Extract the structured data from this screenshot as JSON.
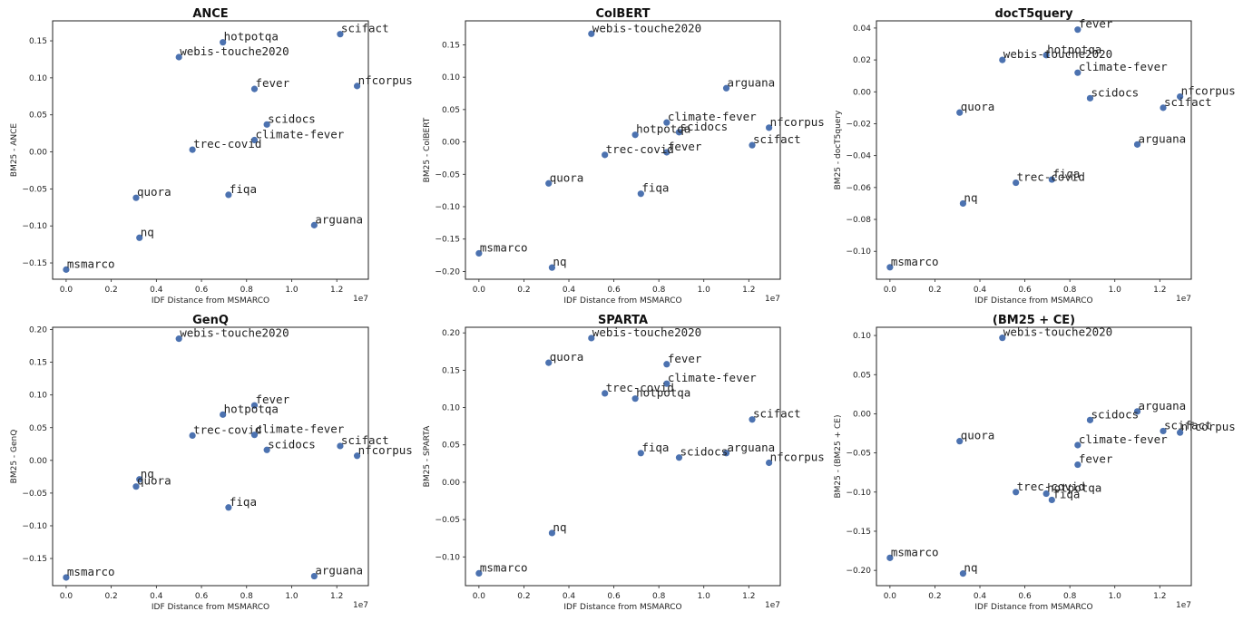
{
  "chart_data": [
    {
      "type": "scatter",
      "title": "ANCE",
      "xlabel": "IDF Distance from MSMARCO",
      "ylabel": "BM25 - ANCE",
      "x_offset_label": "1e7",
      "xlim": [
        -0.06,
        1.34
      ],
      "ylim": [
        -0.172,
        0.177
      ],
      "xticks": [
        0.0,
        0.2,
        0.4,
        0.6,
        0.8,
        1.0,
        1.2
      ],
      "xtick_labels": [
        "0.0",
        "0.2",
        "0.4",
        "0.6",
        "0.8",
        "1.0",
        "1.2"
      ],
      "yticks": [
        -0.15,
        -0.1,
        -0.05,
        0.0,
        0.05,
        0.1,
        0.15
      ],
      "ytick_labels": [
        "−0.15",
        "−0.10",
        "−0.05",
        "0.00",
        "0.05",
        "0.10",
        "0.15"
      ],
      "points": [
        {
          "label": "scifact",
          "x": 1.215,
          "y": 0.159
        },
        {
          "label": "hotpotqa",
          "x": 0.695,
          "y": 0.148
        },
        {
          "label": "webis-touche2020",
          "x": 0.5,
          "y": 0.128
        },
        {
          "label": "nfcorpus",
          "x": 1.29,
          "y": 0.089
        },
        {
          "label": "fever",
          "x": 0.835,
          "y": 0.085
        },
        {
          "label": "scidocs",
          "x": 0.89,
          "y": 0.037
        },
        {
          "label": "climate-fever",
          "x": 0.835,
          "y": 0.016
        },
        {
          "label": "trec-covid",
          "x": 0.56,
          "y": 0.003
        },
        {
          "label": "quora",
          "x": 0.31,
          "y": -0.062
        },
        {
          "label": "fiqa",
          "x": 0.72,
          "y": -0.058
        },
        {
          "label": "arguana",
          "x": 1.1,
          "y": -0.099
        },
        {
          "label": "nq",
          "x": 0.325,
          "y": -0.116
        },
        {
          "label": "msmarco",
          "x": 0.0,
          "y": -0.159
        }
      ]
    },
    {
      "type": "scatter",
      "title": "ColBERT",
      "xlabel": "IDF Distance from MSMARCO",
      "ylabel": "BM25 - ColBERT",
      "x_offset_label": "1e7",
      "xlim": [
        -0.06,
        1.34
      ],
      "ylim": [
        -0.212,
        0.187
      ],
      "xticks": [
        0.0,
        0.2,
        0.4,
        0.6,
        0.8,
        1.0,
        1.2
      ],
      "xtick_labels": [
        "0.0",
        "0.2",
        "0.4",
        "0.6",
        "0.8",
        "1.0",
        "1.2"
      ],
      "yticks": [
        -0.2,
        -0.15,
        -0.1,
        -0.05,
        0.0,
        0.05,
        0.1,
        0.15
      ],
      "ytick_labels": [
        "−0.20",
        "−0.15",
        "−0.10",
        "−0.05",
        "0.00",
        "0.05",
        "0.10",
        "0.15"
      ],
      "points": [
        {
          "label": "webis-touche2020",
          "x": 0.5,
          "y": 0.167
        },
        {
          "label": "arguana",
          "x": 1.1,
          "y": 0.083
        },
        {
          "label": "climate-fever",
          "x": 0.835,
          "y": 0.03
        },
        {
          "label": "nfcorpus",
          "x": 1.29,
          "y": 0.022
        },
        {
          "label": "scidocs",
          "x": 0.89,
          "y": 0.015
        },
        {
          "label": "hotpotqa",
          "x": 0.695,
          "y": 0.011
        },
        {
          "label": "scifact",
          "x": 1.215,
          "y": -0.005
        },
        {
          "label": "fever",
          "x": 0.835,
          "y": -0.016
        },
        {
          "label": "trec-covid",
          "x": 0.56,
          "y": -0.02
        },
        {
          "label": "quora",
          "x": 0.31,
          "y": -0.064
        },
        {
          "label": "fiqa",
          "x": 0.72,
          "y": -0.08
        },
        {
          "label": "msmarco",
          "x": 0.0,
          "y": -0.172
        },
        {
          "label": "nq",
          "x": 0.325,
          "y": -0.194
        }
      ]
    },
    {
      "type": "scatter",
      "title": "docT5query",
      "xlabel": "IDF Distance from MSMARCO",
      "ylabel": "BM25 - docT5query",
      "x_offset_label": "1e7",
      "xlim": [
        -0.06,
        1.34
      ],
      "ylim": [
        -0.1175,
        0.0445
      ],
      "xticks": [
        0.0,
        0.2,
        0.4,
        0.6,
        0.8,
        1.0,
        1.2
      ],
      "xtick_labels": [
        "0.0",
        "0.2",
        "0.4",
        "0.6",
        "0.8",
        "1.0",
        "1.2"
      ],
      "yticks": [
        -0.1,
        -0.08,
        -0.06,
        -0.04,
        -0.02,
        0.0,
        0.02,
        0.04
      ],
      "ytick_labels": [
        "−0.10",
        "−0.08",
        "−0.06",
        "−0.04",
        "−0.02",
        "0.00",
        "0.02",
        "0.04"
      ],
      "points": [
        {
          "label": "fever",
          "x": 0.835,
          "y": 0.039
        },
        {
          "label": "hotpotqa",
          "x": 0.695,
          "y": 0.023
        },
        {
          "label": "webis-touche2020",
          "x": 0.5,
          "y": 0.02
        },
        {
          "label": "climate-fever",
          "x": 0.835,
          "y": 0.012
        },
        {
          "label": "nfcorpus",
          "x": 1.29,
          "y": -0.003
        },
        {
          "label": "scidocs",
          "x": 0.89,
          "y": -0.004
        },
        {
          "label": "scifact",
          "x": 1.215,
          "y": -0.01
        },
        {
          "label": "quora",
          "x": 0.31,
          "y": -0.013
        },
        {
          "label": "arguana",
          "x": 1.1,
          "y": -0.033
        },
        {
          "label": "fiqa",
          "x": 0.72,
          "y": -0.055
        },
        {
          "label": "trec-covid",
          "x": 0.56,
          "y": -0.057
        },
        {
          "label": "nq",
          "x": 0.325,
          "y": -0.07
        },
        {
          "label": "msmarco",
          "x": 0.0,
          "y": -0.11
        }
      ]
    },
    {
      "type": "scatter",
      "title": "GenQ",
      "xlabel": "IDF Distance from MSMARCO",
      "ylabel": "BM25 - GenQ",
      "x_offset_label": "1e7",
      "xlim": [
        -0.06,
        1.34
      ],
      "ylim": [
        -0.1915,
        0.2035
      ],
      "xticks": [
        0.0,
        0.2,
        0.4,
        0.6,
        0.8,
        1.0,
        1.2
      ],
      "xtick_labels": [
        "0.0",
        "0.2",
        "0.4",
        "0.6",
        "0.8",
        "1.0",
        "1.2"
      ],
      "yticks": [
        -0.15,
        -0.1,
        -0.05,
        0.0,
        0.05,
        0.1,
        0.15,
        0.2
      ],
      "ytick_labels": [
        "−0.15",
        "−0.10",
        "−0.05",
        "0.00",
        "0.05",
        "0.10",
        "0.15",
        "0.20"
      ],
      "points": [
        {
          "label": "webis-touche2020",
          "x": 0.5,
          "y": 0.186
        },
        {
          "label": "fever",
          "x": 0.835,
          "y": 0.084
        },
        {
          "label": "hotpotqa",
          "x": 0.695,
          "y": 0.07
        },
        {
          "label": "trec-covid",
          "x": 0.56,
          "y": 0.038
        },
        {
          "label": "climate-fever",
          "x": 0.835,
          "y": 0.039
        },
        {
          "label": "scifact",
          "x": 1.215,
          "y": 0.022
        },
        {
          "label": "scidocs",
          "x": 0.89,
          "y": 0.016
        },
        {
          "label": "nfcorpus",
          "x": 1.29,
          "y": 0.007
        },
        {
          "label": "nq",
          "x": 0.325,
          "y": -0.029
        },
        {
          "label": "quora",
          "x": 0.31,
          "y": -0.04
        },
        {
          "label": "fiqa",
          "x": 0.72,
          "y": -0.072
        },
        {
          "label": "arguana",
          "x": 1.1,
          "y": -0.177
        },
        {
          "label": "msmarco",
          "x": 0.0,
          "y": -0.179
        }
      ]
    },
    {
      "type": "scatter",
      "title": "SPARTA",
      "xlabel": "IDF Distance from MSMARCO",
      "ylabel": "BM25 - SPARTA",
      "x_offset_label": "1e7",
      "xlim": [
        -0.06,
        1.34
      ],
      "ylim": [
        -0.1385,
        0.2075
      ],
      "xticks": [
        0.0,
        0.2,
        0.4,
        0.6,
        0.8,
        1.0,
        1.2
      ],
      "xtick_labels": [
        "0.0",
        "0.2",
        "0.4",
        "0.6",
        "0.8",
        "1.0",
        "1.2"
      ],
      "yticks": [
        -0.1,
        -0.05,
        0.0,
        0.05,
        0.1,
        0.15,
        0.2
      ],
      "ytick_labels": [
        "−0.10",
        "−0.05",
        "0.00",
        "0.05",
        "0.10",
        "0.15",
        "0.20"
      ],
      "points": [
        {
          "label": "webis-touche2020",
          "x": 0.5,
          "y": 0.193
        },
        {
          "label": "quora",
          "x": 0.31,
          "y": 0.16
        },
        {
          "label": "fever",
          "x": 0.835,
          "y": 0.158
        },
        {
          "label": "climate-fever",
          "x": 0.835,
          "y": 0.132
        },
        {
          "label": "trec-covid",
          "x": 0.56,
          "y": 0.119
        },
        {
          "label": "hotpotqa",
          "x": 0.695,
          "y": 0.112
        },
        {
          "label": "scifact",
          "x": 1.215,
          "y": 0.084
        },
        {
          "label": "fiqa",
          "x": 0.72,
          "y": 0.039
        },
        {
          "label": "arguana",
          "x": 1.1,
          "y": 0.039
        },
        {
          "label": "scidocs",
          "x": 0.89,
          "y": 0.033
        },
        {
          "label": "nfcorpus",
          "x": 1.29,
          "y": 0.026
        },
        {
          "label": "nq",
          "x": 0.325,
          "y": -0.068
        },
        {
          "label": "msmarco",
          "x": 0.0,
          "y": -0.122
        }
      ]
    },
    {
      "type": "scatter",
      "title": "(BM25 + CE)",
      "xlabel": "IDF Distance from MSMARCO",
      "ylabel": "BM25 - (BM25 + CE)",
      "x_offset_label": "1e7",
      "xlim": [
        -0.06,
        1.34
      ],
      "ylim": [
        -0.2195,
        0.1105
      ],
      "xticks": [
        0.0,
        0.2,
        0.4,
        0.6,
        0.8,
        1.0,
        1.2
      ],
      "xtick_labels": [
        "0.0",
        "0.2",
        "0.4",
        "0.6",
        "0.8",
        "1.0",
        "1.2"
      ],
      "yticks": [
        -0.2,
        -0.15,
        -0.1,
        -0.05,
        0.0,
        0.05,
        0.1
      ],
      "ytick_labels": [
        "−0.20",
        "−0.15",
        "−0.10",
        "−0.05",
        "0.00",
        "0.05",
        "0.10"
      ],
      "points": [
        {
          "label": "webis-touche2020",
          "x": 0.5,
          "y": 0.097
        },
        {
          "label": "arguana",
          "x": 1.1,
          "y": 0.003
        },
        {
          "label": "scidocs",
          "x": 0.89,
          "y": -0.008
        },
        {
          "label": "scifact",
          "x": 1.215,
          "y": -0.022
        },
        {
          "label": "nfcorpus",
          "x": 1.29,
          "y": -0.024
        },
        {
          "label": "quora",
          "x": 0.31,
          "y": -0.035
        },
        {
          "label": "climate-fever",
          "x": 0.835,
          "y": -0.04
        },
        {
          "label": "fever",
          "x": 0.835,
          "y": -0.065
        },
        {
          "label": "trec-covid",
          "x": 0.56,
          "y": -0.1
        },
        {
          "label": "hotpotqa",
          "x": 0.695,
          "y": -0.102
        },
        {
          "label": "fiqa",
          "x": 0.72,
          "y": -0.11
        },
        {
          "label": "msmarco",
          "x": 0.0,
          "y": -0.184
        },
        {
          "label": "nq",
          "x": 0.325,
          "y": -0.204
        }
      ]
    }
  ]
}
